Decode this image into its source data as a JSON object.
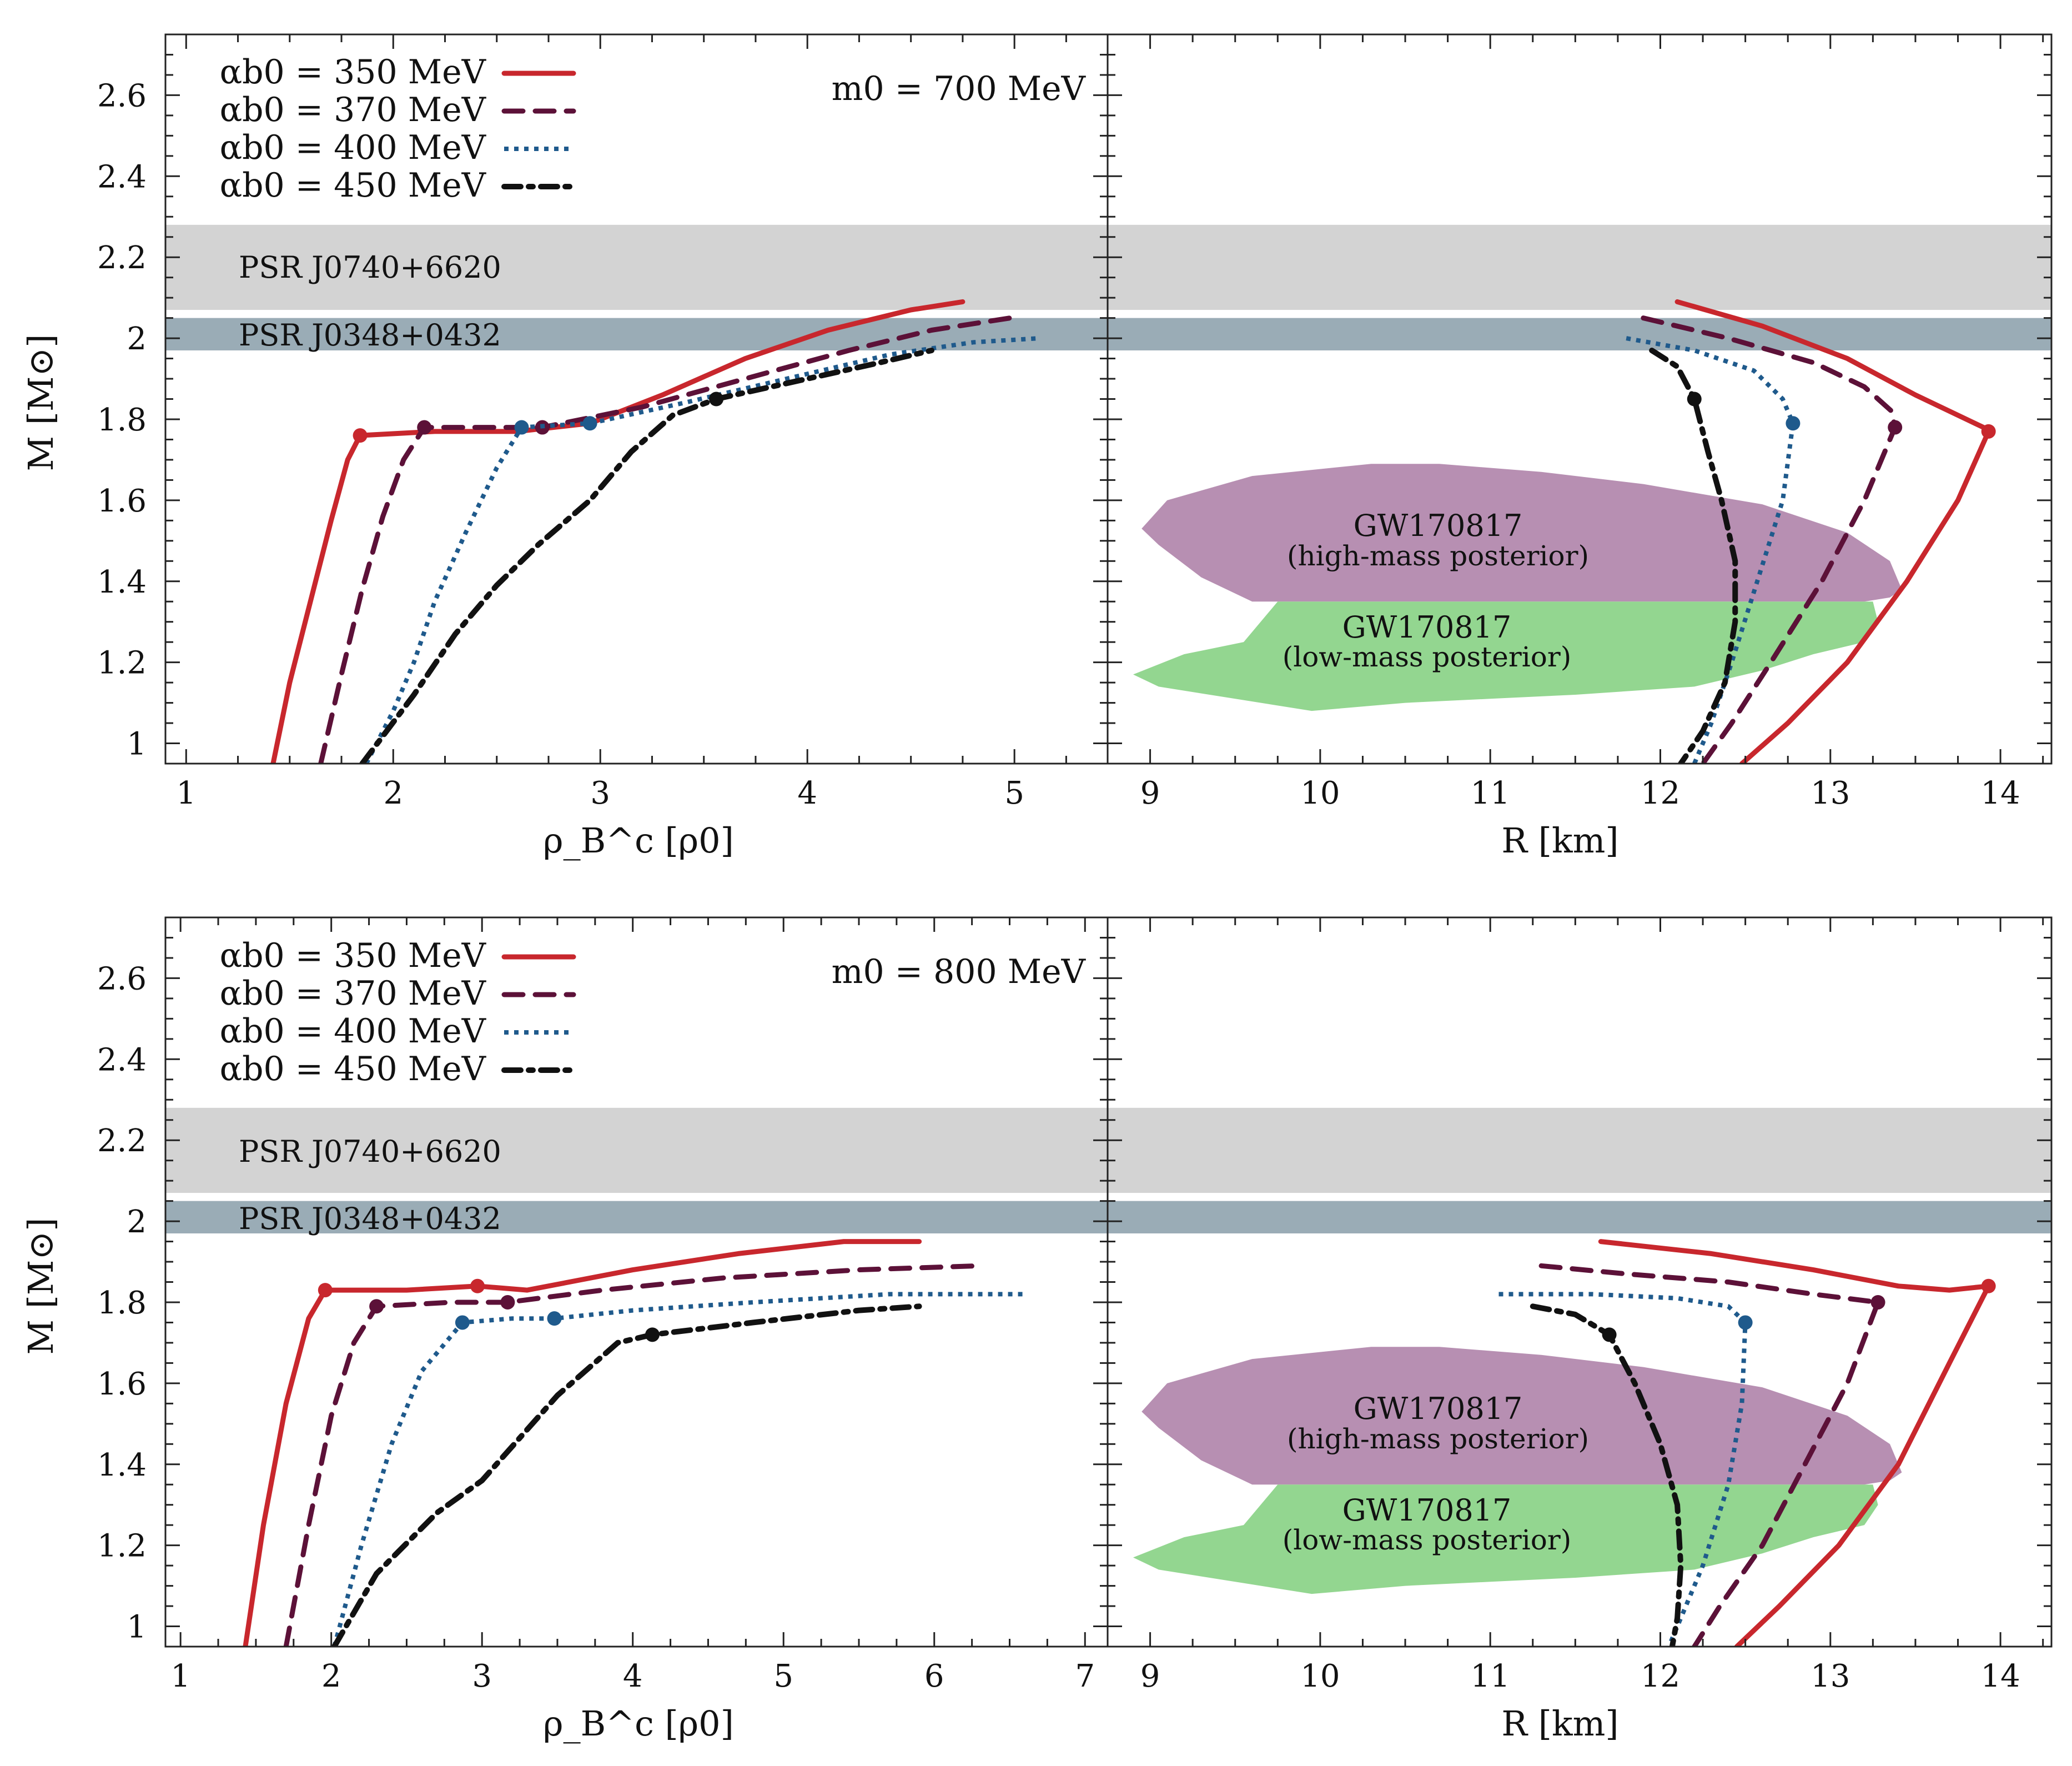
{
  "figure": {
    "ylabel": "M [M⊙]",
    "xlabel_left": "ρ_B^c [ρ0]",
    "xlabel_right": "R [km]",
    "bands": {
      "psr_j0740": {
        "label": "PSR J0740+6620",
        "range": [
          2.07,
          2.28
        ],
        "color": "#d3d3d3"
      },
      "psr_j0348": {
        "label": "PSR J0348+0432",
        "range": [
          1.97,
          2.05
        ],
        "color": "#9aacb6"
      }
    },
    "gw": {
      "high": {
        "label": "GW170817",
        "sub": "(high-mass posterior)",
        "color": "#b78fb2"
      },
      "low": {
        "label": "GW170817",
        "sub": "(low-mass posterior)",
        "color": "#93d690"
      }
    },
    "legend": [
      {
        "label": "αb0 = 350 MeV",
        "color": "#c8272d",
        "dash": "solid"
      },
      {
        "label": "αb0 = 370 MeV",
        "color": "#5c1138",
        "dash": "dashed"
      },
      {
        "label": "αb0 = 400 MeV",
        "color": "#1f5a8c",
        "dash": "dotted"
      },
      {
        "label": "αb0 = 450 MeV",
        "color": "#111111",
        "dash": "dashdot"
      }
    ]
  },
  "chart_data": [
    {
      "type": "line",
      "panel": "top-left",
      "annotation": "m0 = 700 MeV",
      "xlabel": "ρ_B^c [ρ0]",
      "ylabel": "M [M⊙]",
      "xlim": [
        0.9,
        5.45
      ],
      "ylim": [
        0.95,
        2.75
      ],
      "xticks": [
        1,
        2,
        3,
        4,
        5
      ],
      "yticks": [
        1,
        1.2,
        1.4,
        1.6,
        1.8,
        2,
        2.2,
        2.4,
        2.6
      ],
      "series": [
        {
          "name": "αb0 = 350 MeV",
          "x": [
            1.42,
            1.5,
            1.6,
            1.7,
            1.78,
            1.84,
            2.2,
            2.6,
            2.95,
            3.3,
            3.7,
            4.1,
            4.5,
            4.75
          ],
          "y": [
            0.95,
            1.15,
            1.35,
            1.55,
            1.7,
            1.76,
            1.77,
            1.77,
            1.79,
            1.86,
            1.95,
            2.02,
            2.07,
            2.09
          ],
          "markers": [
            [
              1.84,
              1.76
            ]
          ]
        },
        {
          "name": "αb0 = 370 MeV",
          "x": [
            1.65,
            1.75,
            1.85,
            1.95,
            2.05,
            2.15,
            2.5,
            2.72,
            3.2,
            3.7,
            4.2,
            4.6,
            4.98
          ],
          "y": [
            0.95,
            1.17,
            1.38,
            1.56,
            1.7,
            1.78,
            1.78,
            1.78,
            1.83,
            1.9,
            1.97,
            2.02,
            2.05
          ],
          "markers": [
            [
              2.15,
              1.78
            ],
            [
              2.72,
              1.78
            ]
          ]
        },
        {
          "name": "αb0 = 400 MeV",
          "x": [
            1.87,
            2.0,
            2.1,
            2.2,
            2.35,
            2.5,
            2.62,
            2.95,
            3.4,
            3.9,
            4.4,
            4.8,
            5.12
          ],
          "y": [
            0.95,
            1.08,
            1.2,
            1.35,
            1.52,
            1.68,
            1.78,
            1.79,
            1.84,
            1.9,
            1.96,
            1.99,
            2.0
          ],
          "markers": [
            [
              2.62,
              1.78
            ],
            [
              2.95,
              1.79
            ]
          ]
        },
        {
          "name": "αb0 = 450 MeV",
          "x": [
            1.85,
            2.1,
            2.3,
            2.5,
            2.7,
            2.95,
            3.15,
            3.35,
            3.56,
            4.0,
            4.35,
            4.6
          ],
          "y": [
            0.95,
            1.12,
            1.27,
            1.39,
            1.49,
            1.6,
            1.72,
            1.81,
            1.85,
            1.9,
            1.94,
            1.97
          ],
          "markers": [
            [
              3.56,
              1.85
            ]
          ]
        }
      ]
    },
    {
      "type": "line",
      "panel": "top-right",
      "xlabel": "R [km]",
      "ylabel": "M [M⊙]",
      "xlim": [
        8.75,
        14.3
      ],
      "ylim": [
        0.95,
        2.75
      ],
      "xticks": [
        9,
        10,
        11,
        12,
        13,
        14
      ],
      "yticks": [
        1,
        1.2,
        1.4,
        1.6,
        1.8,
        2,
        2.2,
        2.4,
        2.6
      ],
      "series": [
        {
          "name": "αb0 = 350 MeV",
          "x": [
            12.1,
            12.6,
            13.1,
            13.5,
            13.9,
            13.93,
            13.75,
            13.45,
            13.1,
            12.75,
            12.48
          ],
          "y": [
            2.09,
            2.03,
            1.95,
            1.86,
            1.78,
            1.77,
            1.6,
            1.4,
            1.2,
            1.05,
            0.95
          ],
          "markers": [
            [
              13.93,
              1.77
            ]
          ]
        },
        {
          "name": "αb0 = 370 MeV",
          "x": [
            11.9,
            12.4,
            12.9,
            13.2,
            13.36,
            13.38,
            13.2,
            12.95,
            12.65,
            12.42,
            12.25
          ],
          "y": [
            2.05,
            2.0,
            1.94,
            1.88,
            1.82,
            1.78,
            1.6,
            1.4,
            1.2,
            1.05,
            0.95
          ],
          "markers": [
            [
              13.38,
              1.78
            ]
          ]
        },
        {
          "name": "αb0 = 400 MeV",
          "x": [
            11.8,
            12.2,
            12.55,
            12.72,
            12.78,
            12.72,
            12.57,
            12.42,
            12.3,
            12.2
          ],
          "y": [
            2.0,
            1.97,
            1.92,
            1.85,
            1.79,
            1.6,
            1.4,
            1.2,
            1.05,
            0.95
          ],
          "markers": [
            [
              12.78,
              1.79
            ]
          ]
        },
        {
          "name": "αb0 = 450 MeV",
          "x": [
            11.95,
            12.1,
            12.2,
            12.28,
            12.36,
            12.44,
            12.44,
            12.38,
            12.25,
            12.12
          ],
          "y": [
            1.97,
            1.93,
            1.85,
            1.72,
            1.6,
            1.45,
            1.3,
            1.15,
            1.03,
            0.95
          ],
          "markers": [
            [
              12.2,
              1.85
            ]
          ]
        }
      ],
      "regions": [
        {
          "name": "GW170817 high-mass posterior",
          "x": [
            8.95,
            9.1,
            9.6,
            10.3,
            10.7,
            11.3,
            11.9,
            12.6,
            13.1,
            13.35,
            13.42,
            13.35,
            13.2,
            9.6,
            9.3,
            9.05,
            8.95
          ],
          "y": [
            1.53,
            1.6,
            1.66,
            1.69,
            1.69,
            1.67,
            1.64,
            1.59,
            1.52,
            1.45,
            1.38,
            1.36,
            1.35,
            1.35,
            1.41,
            1.49,
            1.53
          ]
        },
        {
          "name": "GW170817 low-mass posterior",
          "x": [
            8.9,
            9.2,
            9.55,
            9.75,
            13.25,
            13.28,
            13.2,
            12.9,
            12.6,
            12.2,
            11.5,
            11.0,
            10.5,
            9.95,
            9.5,
            9.05,
            8.9
          ],
          "y": [
            1.17,
            1.22,
            1.25,
            1.35,
            1.35,
            1.3,
            1.25,
            1.22,
            1.18,
            1.14,
            1.12,
            1.11,
            1.1,
            1.08,
            1.11,
            1.14,
            1.17
          ]
        }
      ]
    },
    {
      "type": "line",
      "panel": "bottom-left",
      "annotation": "m0 = 800 MeV",
      "xlabel": "ρ_B^c [ρ0]",
      "ylabel": "M [M⊙]",
      "xlim": [
        0.9,
        7.15
      ],
      "ylim": [
        0.95,
        2.75
      ],
      "xticks": [
        1,
        2,
        3,
        4,
        5,
        6,
        7
      ],
      "yticks": [
        1,
        1.2,
        1.4,
        1.6,
        1.8,
        2,
        2.2,
        2.4,
        2.6
      ],
      "series": [
        {
          "name": "αb0 = 350 MeV",
          "x": [
            1.43,
            1.55,
            1.7,
            1.85,
            1.96,
            2.5,
            2.97,
            3.3,
            4.0,
            4.7,
            5.4,
            5.9
          ],
          "y": [
            0.95,
            1.25,
            1.55,
            1.76,
            1.83,
            1.83,
            1.84,
            1.83,
            1.88,
            1.92,
            1.95,
            1.95
          ],
          "markers": [
            [
              1.96,
              1.83
            ],
            [
              2.97,
              1.84
            ]
          ]
        },
        {
          "name": "αb0 = 370 MeV",
          "x": [
            1.7,
            1.85,
            2.0,
            2.15,
            2.3,
            2.8,
            3.17,
            3.8,
            4.6,
            5.5,
            6.3
          ],
          "y": [
            0.95,
            1.25,
            1.52,
            1.7,
            1.79,
            1.8,
            1.8,
            1.83,
            1.86,
            1.88,
            1.89
          ],
          "markers": [
            [
              2.3,
              1.79
            ],
            [
              3.17,
              1.8
            ]
          ]
        },
        {
          "name": "αb0 = 400 MeV",
          "x": [
            2.02,
            2.2,
            2.4,
            2.6,
            2.87,
            3.2,
            3.48,
            4.0,
            4.8,
            5.7,
            6.6
          ],
          "y": [
            0.95,
            1.2,
            1.45,
            1.63,
            1.75,
            1.76,
            1.76,
            1.78,
            1.8,
            1.82,
            1.82
          ],
          "markers": [
            [
              2.87,
              1.75
            ],
            [
              3.48,
              1.76
            ]
          ]
        },
        {
          "name": "αb0 = 450 MeV",
          "x": [
            2.02,
            2.3,
            2.7,
            3.0,
            3.5,
            3.9,
            4.13,
            4.8,
            5.5,
            5.9
          ],
          "y": [
            0.95,
            1.13,
            1.28,
            1.36,
            1.57,
            1.7,
            1.72,
            1.75,
            1.78,
            1.79
          ],
          "markers": [
            [
              4.13,
              1.72
            ]
          ]
        }
      ]
    },
    {
      "type": "line",
      "panel": "bottom-right",
      "xlabel": "R [km]",
      "ylabel": "M [M⊙]",
      "xlim": [
        8.75,
        14.3
      ],
      "ylim": [
        0.95,
        2.75
      ],
      "xticks": [
        9,
        10,
        11,
        12,
        13,
        14
      ],
      "yticks": [
        1,
        1.2,
        1.4,
        1.6,
        1.8,
        2,
        2.2,
        2.4,
        2.6
      ],
      "series": [
        {
          "name": "αb0 = 350 MeV",
          "x": [
            11.65,
            12.3,
            12.9,
            13.4,
            13.7,
            13.93,
            13.7,
            13.4,
            13.05,
            12.7,
            12.45
          ],
          "y": [
            1.95,
            1.92,
            1.88,
            1.84,
            1.83,
            1.84,
            1.65,
            1.4,
            1.2,
            1.05,
            0.95
          ],
          "markers": [
            [
              13.93,
              1.84
            ]
          ]
        },
        {
          "name": "αb0 = 370 MeV",
          "x": [
            11.3,
            11.8,
            12.4,
            12.9,
            13.28,
            13.1,
            12.85,
            12.6,
            12.35,
            12.2
          ],
          "y": [
            1.89,
            1.87,
            1.85,
            1.82,
            1.8,
            1.6,
            1.4,
            1.2,
            1.05,
            0.95
          ],
          "markers": [
            [
              13.28,
              1.8
            ]
          ]
        },
        {
          "name": "αb0 = 400 MeV",
          "x": [
            11.05,
            11.6,
            12.1,
            12.4,
            12.5,
            12.48,
            12.4,
            12.25,
            12.12,
            12.05
          ],
          "y": [
            1.82,
            1.82,
            1.81,
            1.79,
            1.75,
            1.55,
            1.35,
            1.15,
            1.02,
            0.95
          ],
          "markers": [
            [
              12.5,
              1.75
            ]
          ]
        },
        {
          "name": "αb0 = 450 MeV",
          "x": [
            11.25,
            11.5,
            11.7,
            11.85,
            12.0,
            12.1,
            12.12,
            12.1,
            12.07
          ],
          "y": [
            1.79,
            1.77,
            1.72,
            1.6,
            1.45,
            1.3,
            1.15,
            1.02,
            0.95
          ],
          "markers": [
            [
              11.7,
              1.72
            ]
          ]
        }
      ],
      "regions": [
        {
          "name": "GW170817 high-mass posterior",
          "x": [
            8.95,
            9.1,
            9.6,
            10.3,
            10.7,
            11.3,
            11.9,
            12.6,
            13.1,
            13.35,
            13.42,
            13.35,
            13.2,
            9.6,
            9.3,
            9.05,
            8.95
          ],
          "y": [
            1.53,
            1.6,
            1.66,
            1.69,
            1.69,
            1.67,
            1.64,
            1.59,
            1.52,
            1.45,
            1.38,
            1.36,
            1.35,
            1.35,
            1.41,
            1.49,
            1.53
          ]
        },
        {
          "name": "GW170817 low-mass posterior",
          "x": [
            8.9,
            9.2,
            9.55,
            9.75,
            13.25,
            13.28,
            13.2,
            12.9,
            12.6,
            12.2,
            11.5,
            11.0,
            10.5,
            9.95,
            9.5,
            9.05,
            8.9
          ],
          "y": [
            1.17,
            1.22,
            1.25,
            1.35,
            1.35,
            1.3,
            1.25,
            1.22,
            1.18,
            1.14,
            1.12,
            1.11,
            1.1,
            1.08,
            1.11,
            1.14,
            1.17
          ]
        }
      ]
    }
  ]
}
